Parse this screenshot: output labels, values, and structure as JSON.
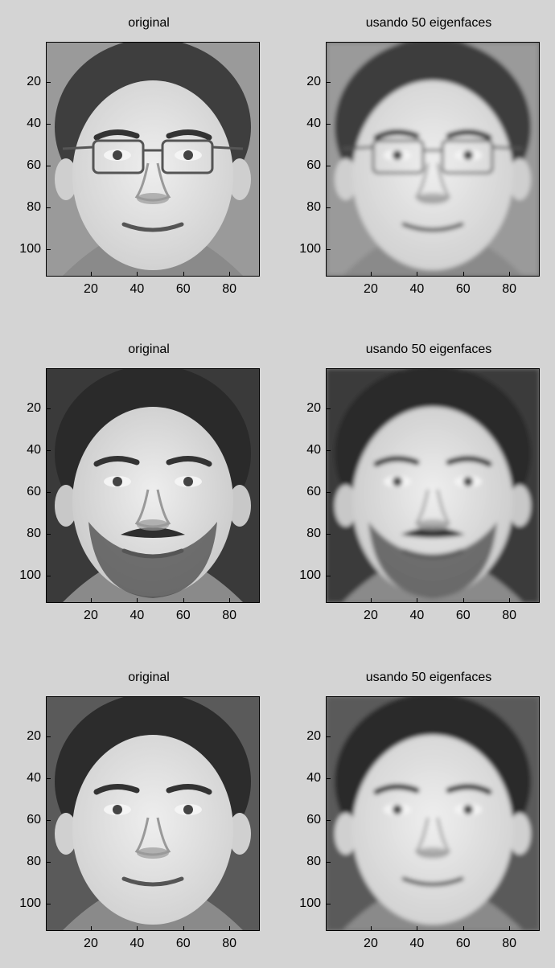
{
  "panels": [
    {
      "title": "original",
      "face": "face-1",
      "blur": 0
    },
    {
      "title": "usando 50 eigenfaces",
      "face": "face-1",
      "blur": 2.6
    },
    {
      "title": "original",
      "face": "face-2",
      "blur": 0
    },
    {
      "title": "usando 50 eigenfaces",
      "face": "face-2",
      "blur": 2.6
    },
    {
      "title": "original",
      "face": "face-3",
      "blur": 0
    },
    {
      "title": "usando 50 eigenfaces",
      "face": "face-3",
      "blur": 2.6
    }
  ],
  "axes": {
    "y_ticks": [
      "20",
      "40",
      "60",
      "80",
      "100"
    ],
    "x_ticks": [
      "20",
      "40",
      "60",
      "80"
    ]
  },
  "faces": {
    "face-1": {
      "bg": "#9a9a9a",
      "hair": "#3e3e3e",
      "skin": "#cfcfcf",
      "glasses": true,
      "beard": false
    },
    "face-2": {
      "bg": "#3a3a3a",
      "hair": "#2a2a2a",
      "skin": "#c8c8c8",
      "glasses": false,
      "beard": true
    },
    "face-3": {
      "bg": "#5a5a5a",
      "hair": "#2c2c2c",
      "skin": "#d0d0d0",
      "glasses": false,
      "beard": false
    }
  }
}
